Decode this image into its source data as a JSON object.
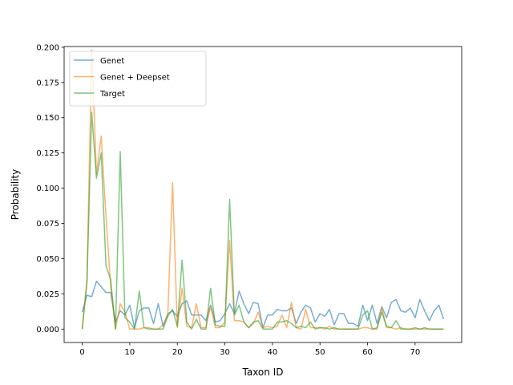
{
  "chart_data": {
    "type": "line",
    "title": "",
    "xlabel": "Taxon ID",
    "ylabel": "Probability",
    "xlim": [
      -3.8,
      79.8
    ],
    "ylim": [
      -0.0095,
      0.2005
    ],
    "xticks": [
      0,
      10,
      20,
      30,
      40,
      50,
      60,
      70
    ],
    "yticks": [
      0.0,
      0.025,
      0.05,
      0.075,
      0.1,
      0.125,
      0.15,
      0.175,
      0.2
    ],
    "ytick_labels": [
      "0.000",
      "0.025",
      "0.050",
      "0.075",
      "0.100",
      "0.125",
      "0.150",
      "0.175",
      "0.200"
    ],
    "grid": false,
    "legend": {
      "placement": "top-left"
    },
    "series": [
      {
        "name": "Genet",
        "color": "#1f77b4",
        "values": [
          0.012,
          0.024,
          0.023,
          0.034,
          0.03,
          0.026,
          0.026,
          0.005,
          0.013,
          0.01,
          0.017,
          0.001,
          0.013,
          0.015,
          0.015,
          0.004,
          0.018,
          0.002,
          0.011,
          0.013,
          0.009,
          0.018,
          0.02,
          0.01,
          0.01,
          0.01,
          0.006,
          0.017,
          0.005,
          0.006,
          0.011,
          0.018,
          0.011,
          0.027,
          0.018,
          0.011,
          0.019,
          0.018,
          0.001,
          0.01,
          0.01,
          0.014,
          0.013,
          0.013,
          0.015,
          0.004,
          0.012,
          0.017,
          0.015,
          0.005,
          0.011,
          0.009,
          0.014,
          0.003,
          0.011,
          0.011,
          0.004,
          0.004,
          0.002,
          0.017,
          0.006,
          0.017,
          0.004,
          0.016,
          0.008,
          0.019,
          0.021,
          0.013,
          0.012,
          0.015,
          0.008,
          0.021,
          0.013,
          0.006,
          0.013,
          0.017,
          0.007
        ]
      },
      {
        "name": "Genet + Deepset",
        "color": "#ff7f0e",
        "values": [
          0.0,
          0.035,
          0.198,
          0.11,
          0.137,
          0.08,
          0.03,
          0.0,
          0.018,
          0.012,
          0.0,
          0.0,
          0.0,
          0.001,
          0.001,
          0.0,
          0.0,
          0.003,
          0.01,
          0.104,
          0.001,
          0.029,
          0.002,
          0.001,
          0.018,
          0.001,
          0.001,
          0.016,
          0.001,
          0.001,
          0.005,
          0.063,
          0.006,
          0.006,
          0.005,
          0.001,
          0.004,
          0.012,
          0.001,
          0.002,
          0.001,
          0.002,
          0.01,
          0.001,
          0.019,
          0.001,
          0.0,
          0.014,
          0.001,
          0.001,
          0.001,
          0.0,
          0.002,
          0.0,
          0.0,
          0.0,
          0.0,
          0.0,
          0.0,
          0.001,
          0.001,
          0.0,
          0.0,
          0.015,
          0.001,
          0.001,
          0.0,
          0.001,
          0.0,
          0.0,
          0.0,
          0.0,
          0.0,
          0.0,
          0.0,
          0.0,
          0.0
        ]
      },
      {
        "name": "Target",
        "color": "#2ca02c",
        "values": [
          0.0,
          0.033,
          0.154,
          0.107,
          0.125,
          0.045,
          0.035,
          0.0,
          0.126,
          0.008,
          0.005,
          0.0,
          0.027,
          0.001,
          0.0,
          0.0,
          0.0,
          0.0,
          0.009,
          0.014,
          0.002,
          0.049,
          0.005,
          0.0,
          0.007,
          0.0,
          0.0,
          0.029,
          0.003,
          0.002,
          0.002,
          0.092,
          0.01,
          0.017,
          0.005,
          0.001,
          0.005,
          0.006,
          0.0,
          0.0,
          0.0,
          0.005,
          0.005,
          0.006,
          0.004,
          0.001,
          0.002,
          0.001,
          0.005,
          0.0,
          0.001,
          0.001,
          0.0,
          0.001,
          0.0,
          0.0,
          0.0,
          0.0,
          0.0,
          0.01,
          0.013,
          0.0,
          0.001,
          0.012,
          0.002,
          0.001,
          0.006,
          0.0,
          0.0,
          0.0,
          0.001,
          0.0,
          0.001,
          0.0,
          0.0,
          0.0,
          0.0
        ]
      }
    ]
  }
}
